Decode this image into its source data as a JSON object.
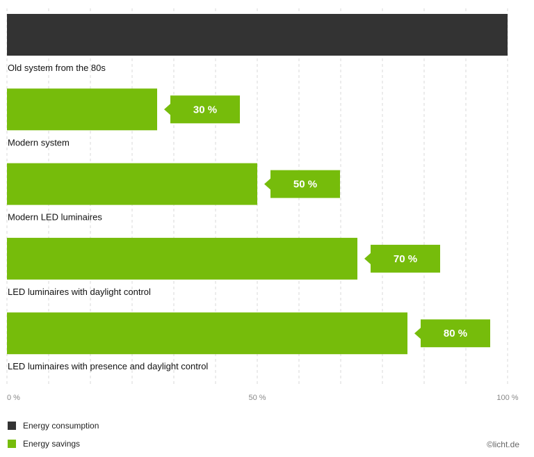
{
  "chart_data": {
    "type": "bar",
    "orientation": "horizontal",
    "categories": [
      "Old system from the 80s",
      "Modern system",
      "Modern LED luminaires",
      "LED luminaires with daylight control",
      "LED luminaires with presence and daylight control"
    ],
    "values": [
      100,
      30,
      50,
      70,
      80
    ],
    "callouts": [
      "",
      "30 %",
      "50 %",
      "70 %",
      "80 %"
    ],
    "bar_colors": [
      "#333333",
      "#76bc0b",
      "#76bc0b",
      "#76bc0b",
      "#76bc0b"
    ],
    "x_ticks": [
      {
        "value": 0,
        "label": "0 %"
      },
      {
        "value": 50,
        "label": "50 %"
      },
      {
        "value": 100,
        "label": "100 %"
      }
    ],
    "gridline_values": [
      0,
      8.33,
      16.67,
      25,
      33.33,
      41.67,
      50,
      58.33,
      66.67,
      75,
      83.33,
      91.67,
      100
    ],
    "xlim": [
      0,
      100
    ],
    "grid": true,
    "legend_placement": "bottom-left"
  },
  "legend": {
    "consumption": {
      "label": "Energy consumption",
      "color": "#333333"
    },
    "savings": {
      "label": "Energy savings",
      "color": "#76bc0b"
    }
  },
  "credit": "©licht.de"
}
